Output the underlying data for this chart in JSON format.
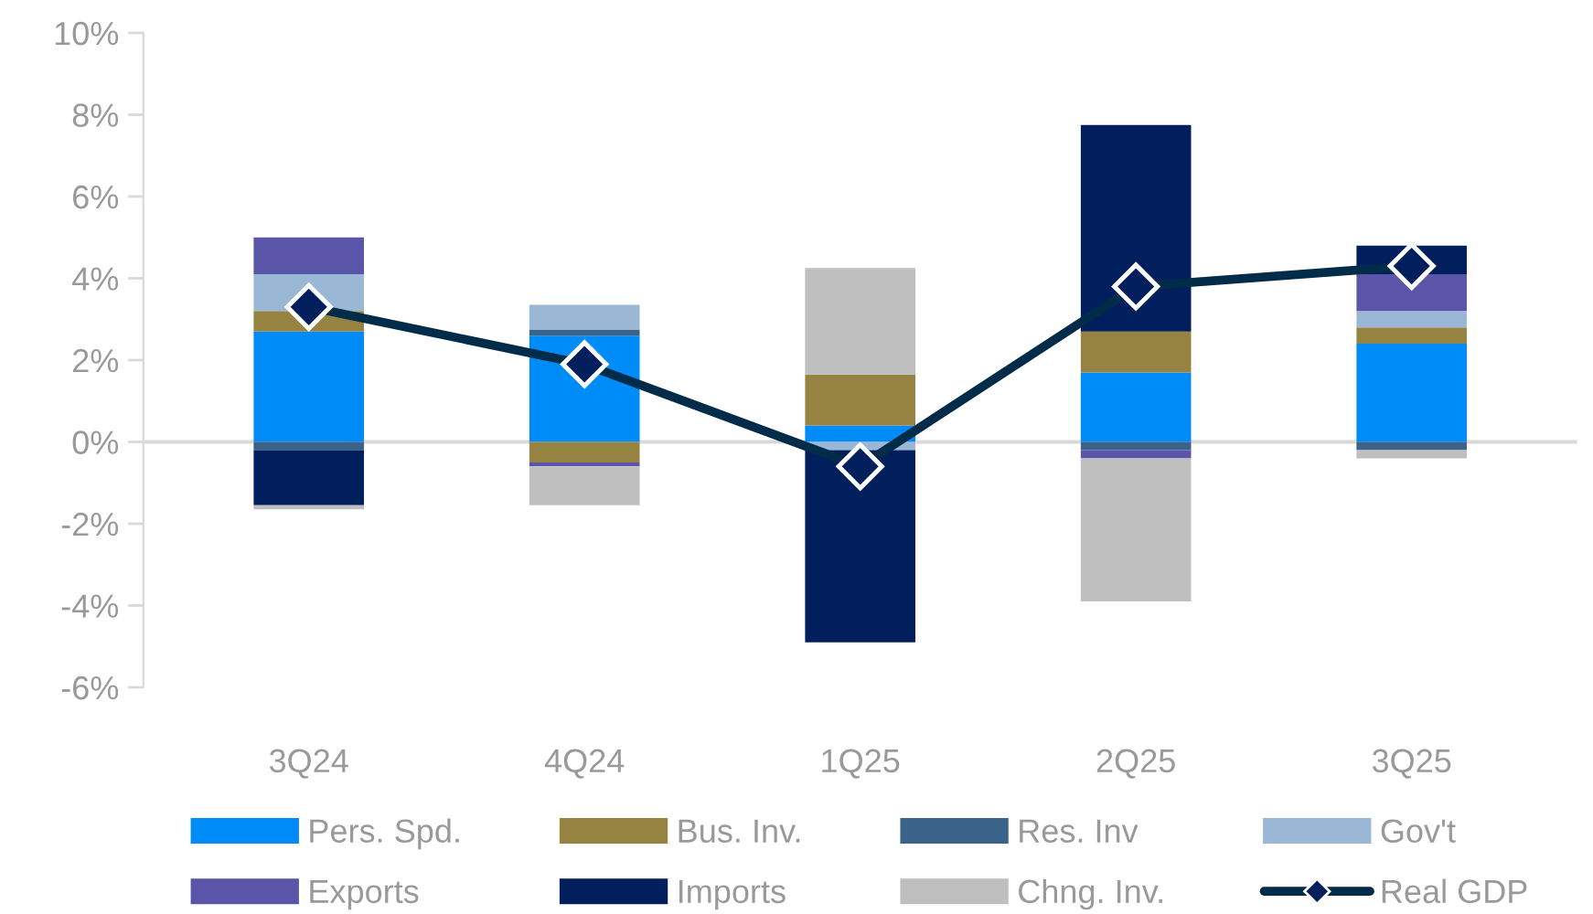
{
  "chart_data": {
    "type": "bar",
    "stacked": true,
    "categories": [
      "3Q24",
      "4Q24",
      "1Q25",
      "2Q25",
      "3Q25"
    ],
    "series": [
      {
        "name": "Pers. Spd.",
        "color": "#008cf8",
        "values": [
          2.7,
          2.6,
          0.4,
          1.7,
          2.4
        ]
      },
      {
        "name": "Bus. Inv.",
        "color": "#978341",
        "values": [
          0.5,
          -0.5,
          1.25,
          1.0,
          0.4
        ]
      },
      {
        "name": "Res. Inv",
        "color": "#3b6389",
        "values": [
          -0.2,
          0.15,
          null,
          -0.2,
          -0.2
        ]
      },
      {
        "name": "Gov't",
        "color": "#9ab8d6",
        "values": [
          0.9,
          0.6,
          -0.2,
          null,
          0.4
        ]
      },
      {
        "name": "Exports",
        "color": "#5a55a8",
        "values": [
          0.9,
          -0.1,
          null,
          -0.2,
          0.9
        ]
      },
      {
        "name": "Imports",
        "color": "#001f5c",
        "values": [
          -1.35,
          null,
          -4.7,
          5.05,
          0.7
        ]
      },
      {
        "name": "Chng. Inv.",
        "color": "#bfbfbf",
        "values": [
          -0.1,
          -0.95,
          2.6,
          -3.5,
          -0.2
        ]
      },
      {
        "name": "Real GDP",
        "type": "line",
        "color": "#002b49",
        "marker": "diamond",
        "values": [
          3.3,
          1.9,
          -0.6,
          3.8,
          4.3
        ]
      }
    ],
    "ylim": [
      -6,
      10
    ],
    "yticks": [
      {
        "value": -6,
        "label": "-6%"
      },
      {
        "value": -4,
        "label": "-4%"
      },
      {
        "value": -2,
        "label": "-2%"
      },
      {
        "value": 0,
        "label": "0%"
      },
      {
        "value": 2,
        "label": "2%"
      },
      {
        "value": 4,
        "label": "4%"
      },
      {
        "value": 6,
        "label": "6%"
      },
      {
        "value": 8,
        "label": "8%"
      },
      {
        "value": 10,
        "label": "10%"
      }
    ],
    "legend": "bottom"
  }
}
